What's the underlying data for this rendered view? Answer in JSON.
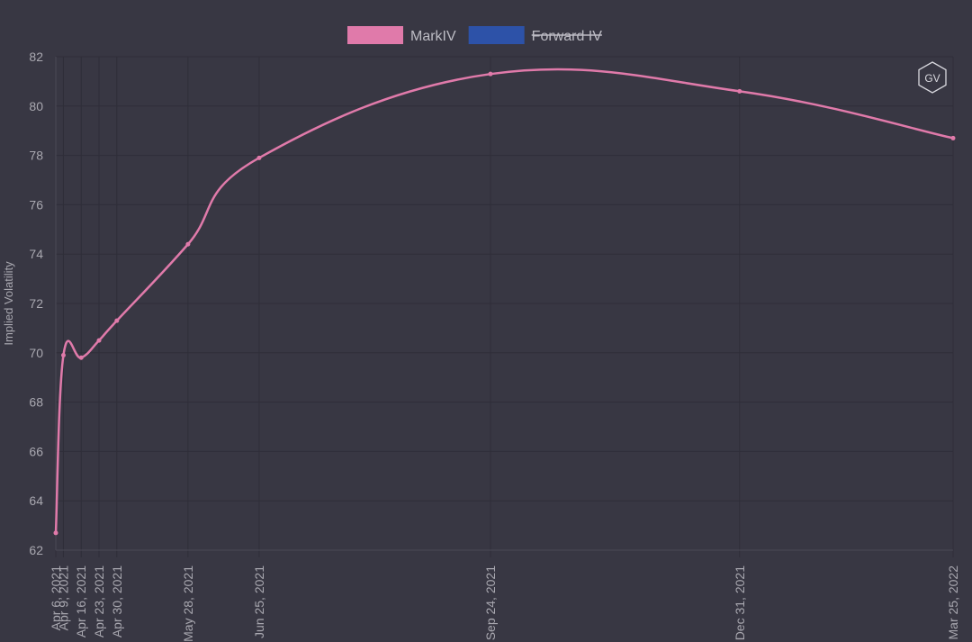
{
  "chart_data": {
    "type": "line",
    "y_label": "Implied Volatility",
    "logo": "GV",
    "x": [
      "2021-04-06",
      "2021-04-09",
      "2021-04-16",
      "2021-04-23",
      "2021-04-30",
      "2021-05-28",
      "2021-06-25",
      "2021-09-24",
      "2021-12-31",
      "2022-03-25"
    ],
    "xlim": [
      "2021-04-06",
      "2022-03-25"
    ],
    "xticks": [
      {
        "value": "2021-04-06",
        "label": "Apr 6, 2021"
      },
      {
        "value": "2021-04-09",
        "label": "Apr 9, 2021"
      },
      {
        "value": "2021-04-16",
        "label": "Apr 16, 2021"
      },
      {
        "value": "2021-04-23",
        "label": "Apr 23, 2021"
      },
      {
        "value": "2021-04-30",
        "label": "Apr 30, 2021"
      },
      {
        "value": "2021-05-28",
        "label": "May 28, 2021"
      },
      {
        "value": "2021-06-25",
        "label": "Jun 25, 2021"
      },
      {
        "value": "2021-09-24",
        "label": "Sep 24, 2021"
      },
      {
        "value": "2021-12-31",
        "label": "Dec 31, 2021"
      },
      {
        "value": "2022-03-25",
        "label": "Mar 25, 2022"
      }
    ],
    "ylim": [
      62,
      82
    ],
    "yticks": [
      62,
      64,
      66,
      68,
      70,
      72,
      74,
      76,
      78,
      80,
      82
    ],
    "grid": true,
    "legend": "top",
    "series": [
      {
        "name": "MarkIV",
        "color": "#e07aaa",
        "values": [
          62.7,
          69.9,
          69.8,
          70.5,
          71.3,
          74.4,
          77.9,
          81.3,
          80.6,
          78.7
        ]
      },
      {
        "name": "Forward IV",
        "color": "#2d52a8",
        "hidden": true
      }
    ]
  }
}
